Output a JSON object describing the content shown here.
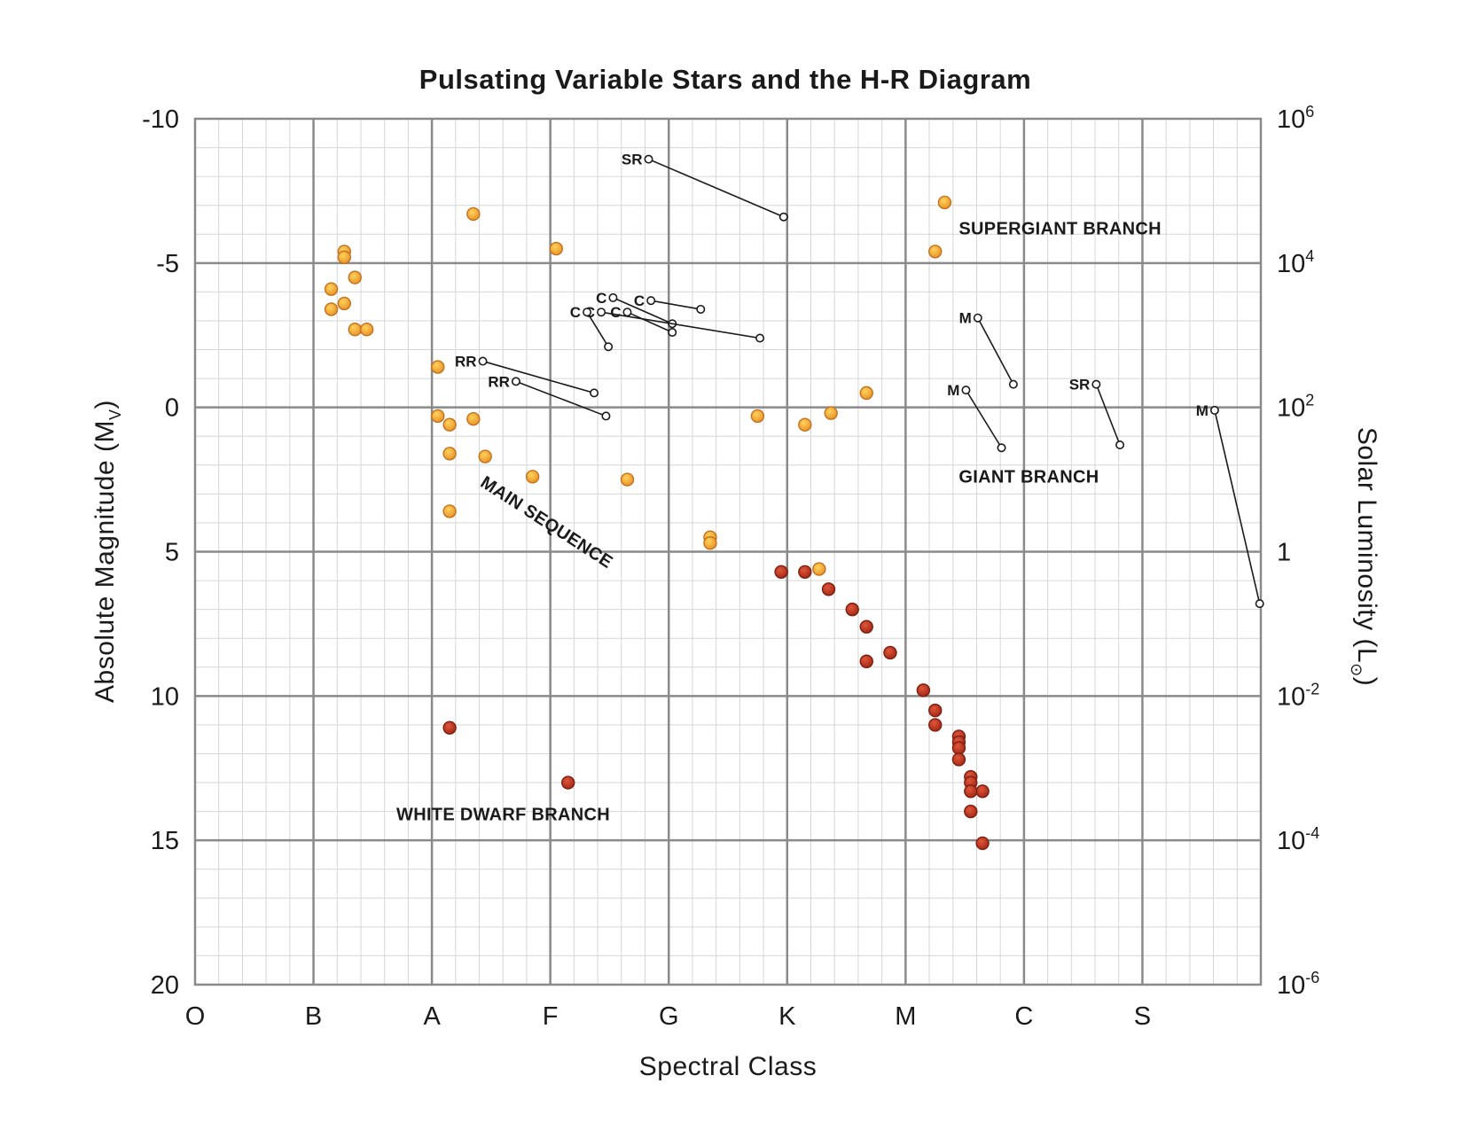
{
  "chart_data": {
    "type": "scatter",
    "title": "Pulsating Variable Stars and the H-R Diagram",
    "xlabel": "Spectral Class",
    "ylabel": {
      "main": "Absolute Magnitude (M",
      "sub": "V",
      "close": ")"
    },
    "y2label": {
      "main": "Solar Luminosity (L",
      "sub": "⊙",
      "close": ")"
    },
    "x_categories": [
      "O",
      "B",
      "A",
      "F",
      "G",
      "K",
      "M",
      "C",
      "S"
    ],
    "xlim": [
      0,
      9
    ],
    "ylim": [
      -10,
      20
    ],
    "y_inverted": true,
    "grid": true,
    "y_ticks": [
      "-10",
      "-5",
      "0",
      "5",
      "10",
      "15",
      "20"
    ],
    "y_tick_values": [
      -10,
      -5,
      0,
      5,
      10,
      15,
      20
    ],
    "y2_ticks": [
      {
        "base": "10",
        "exp": "6"
      },
      {
        "base": "10",
        "exp": "4"
      },
      {
        "base": "10",
        "exp": "2"
      },
      {
        "base": "1",
        "exp": ""
      },
      {
        "base": "10",
        "exp": "-2"
      },
      {
        "base": "10",
        "exp": "-4"
      },
      {
        "base": "10",
        "exp": "-6"
      }
    ],
    "series": [
      {
        "points": [
          [
            1.26,
            -5.4
          ],
          [
            1.26,
            -5.2
          ],
          [
            1.35,
            -4.5
          ],
          [
            1.15,
            -4.1
          ],
          [
            1.26,
            -3.6
          ],
          [
            1.15,
            -3.4
          ],
          [
            1.35,
            -2.7
          ],
          [
            1.45,
            -2.7
          ],
          [
            2.35,
            -6.7
          ],
          [
            3.05,
            -5.5
          ],
          [
            2.05,
            -1.4
          ],
          [
            2.05,
            0.3
          ],
          [
            2.15,
            0.6
          ],
          [
            2.35,
            0.4
          ],
          [
            2.15,
            1.6
          ],
          [
            2.45,
            1.7
          ],
          [
            2.85,
            2.4
          ],
          [
            3.65,
            2.5
          ],
          [
            2.15,
            3.6
          ],
          [
            4.35,
            4.5
          ],
          [
            4.35,
            4.7
          ],
          [
            4.75,
            0.3
          ],
          [
            5.15,
            0.6
          ],
          [
            5.37,
            0.2
          ],
          [
            5.67,
            -0.5
          ],
          [
            6.33,
            -7.1
          ],
          [
            6.25,
            -5.4
          ],
          [
            5.27,
            5.6
          ]
        ],
        "color": "#f2b13c"
      },
      {
        "points": [
          [
            4.95,
            5.7
          ],
          [
            5.15,
            5.7
          ],
          [
            5.35,
            6.3
          ],
          [
            5.55,
            7.0
          ],
          [
            5.67,
            7.6
          ],
          [
            5.87,
            8.5
          ],
          [
            5.67,
            8.8
          ],
          [
            6.15,
            9.8
          ],
          [
            6.25,
            10.5
          ],
          [
            6.25,
            11.0
          ],
          [
            6.45,
            11.4
          ],
          [
            6.45,
            11.6
          ],
          [
            6.45,
            11.8
          ],
          [
            6.45,
            12.2
          ],
          [
            6.55,
            12.8
          ],
          [
            6.55,
            13.0
          ],
          [
            6.65,
            13.3
          ],
          [
            6.55,
            13.3
          ],
          [
            6.55,
            14.0
          ],
          [
            6.65,
            15.1
          ],
          [
            2.15,
            11.1
          ],
          [
            3.15,
            13.0
          ]
        ],
        "color": "#c63a1f"
      }
    ],
    "variables": [
      {
        "label": "SR",
        "from": [
          3.83,
          -8.6
        ],
        "to": [
          4.97,
          -6.6
        ]
      },
      {
        "label": "C",
        "from": [
          3.53,
          -3.8
        ],
        "to": [
          4.03,
          -2.9
        ]
      },
      {
        "label": "C",
        "from": [
          3.85,
          -3.7
        ],
        "to": [
          4.27,
          -3.4
        ]
      },
      {
        "label": "C",
        "from": [
          3.65,
          -3.3
        ],
        "to": [
          4.03,
          -2.6
        ]
      },
      {
        "label": "C",
        "from": [
          3.43,
          -3.3
        ],
        "to": [
          4.77,
          -2.4
        ]
      },
      {
        "label": "C",
        "from": [
          3.31,
          -3.3
        ],
        "to": [
          3.49,
          -2.1
        ]
      },
      {
        "label": "RR",
        "from": [
          2.43,
          -1.6
        ],
        "to": [
          3.37,
          -0.5
        ]
      },
      {
        "label": "RR",
        "from": [
          2.71,
          -0.9
        ],
        "to": [
          3.47,
          0.3
        ]
      },
      {
        "label": "M",
        "from": [
          6.61,
          -3.1
        ],
        "to": [
          6.91,
          -0.8
        ]
      },
      {
        "label": "M",
        "from": [
          6.51,
          -0.6
        ],
        "to": [
          6.81,
          1.4
        ]
      },
      {
        "label": "SR",
        "from": [
          7.61,
          -0.8
        ],
        "to": [
          7.81,
          1.3
        ]
      },
      {
        "label": "M",
        "from": [
          8.61,
          0.1
        ],
        "to": [
          8.99,
          6.8
        ]
      }
    ],
    "annotations": [
      {
        "text": "SUPERGIANT BRANCH",
        "x": 6.45,
        "y": -6.0,
        "rotate": 0
      },
      {
        "text": "GIANT BRANCH",
        "x": 6.45,
        "y": 2.6,
        "rotate": 0
      },
      {
        "text": "MAIN SEQUENCE",
        "x": 2.4,
        "y": 2.7,
        "rotate": 33
      },
      {
        "text": "WHITE DWARF BRANCH",
        "x": 1.7,
        "y": 14.3,
        "rotate": 0
      }
    ]
  }
}
